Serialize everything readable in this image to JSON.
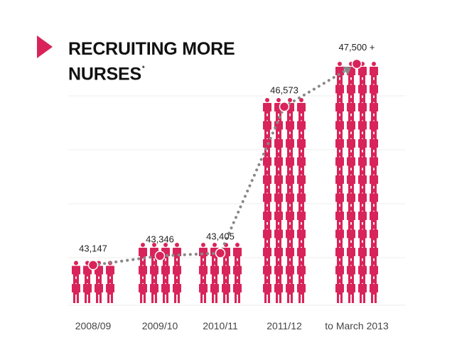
{
  "colors": {
    "accent": "#d8245a",
    "trend_dots": "#888888",
    "grid": "#ececec",
    "label_text": "#222222",
    "axis_text": "#444444"
  },
  "title": {
    "line1": "RECRUITING MORE",
    "line2": "NURSES",
    "footnote_mark": "*"
  },
  "icon": "person-icon",
  "chart_data": {
    "type": "bar",
    "title": "RECRUITING MORE NURSES*",
    "categories": [
      "2008/09",
      "2009/10",
      "2010/11",
      "2011/12",
      "to March 2013"
    ],
    "values": [
      43147,
      43346,
      43405,
      46573,
      47500
    ],
    "value_labels": [
      "43,147",
      "43,346",
      "43,405",
      "46,573",
      "47,500 +"
    ],
    "trend_line": "dotted line with circle markers connecting the values",
    "grid": true,
    "icon_columns": 4
  }
}
